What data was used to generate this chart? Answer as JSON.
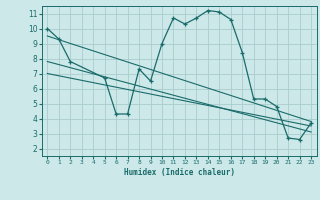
{
  "xlabel": "Humidex (Indice chaleur)",
  "bg_color": "#cce8e8",
  "grid_color": "#aacccc",
  "line_color": "#1a6b6b",
  "xlim": [
    -0.5,
    23.5
  ],
  "ylim": [
    1.5,
    11.5
  ],
  "xticks": [
    0,
    1,
    2,
    3,
    4,
    5,
    6,
    7,
    8,
    9,
    10,
    11,
    12,
    13,
    14,
    15,
    16,
    17,
    18,
    19,
    20,
    21,
    22,
    23
  ],
  "yticks": [
    2,
    3,
    4,
    5,
    6,
    7,
    8,
    9,
    10,
    11
  ],
  "main_x": [
    0,
    1,
    2,
    5,
    6,
    7,
    8,
    9,
    10,
    11,
    12,
    13,
    14,
    15,
    16,
    17,
    18,
    19,
    20,
    21,
    22,
    23
  ],
  "main_y": [
    10.0,
    9.3,
    7.8,
    6.7,
    4.3,
    4.3,
    7.3,
    6.5,
    9.0,
    10.7,
    10.3,
    10.7,
    11.2,
    11.1,
    10.6,
    8.4,
    5.3,
    5.3,
    4.8,
    2.7,
    2.6,
    3.7
  ],
  "trend1_x": [
    0,
    23
  ],
  "trend1_y": [
    9.5,
    3.8
  ],
  "trend2_x": [
    0,
    23
  ],
  "trend2_y": [
    7.8,
    3.1
  ],
  "trend3_x": [
    0,
    23
  ],
  "trend3_y": [
    7.0,
    3.5
  ]
}
